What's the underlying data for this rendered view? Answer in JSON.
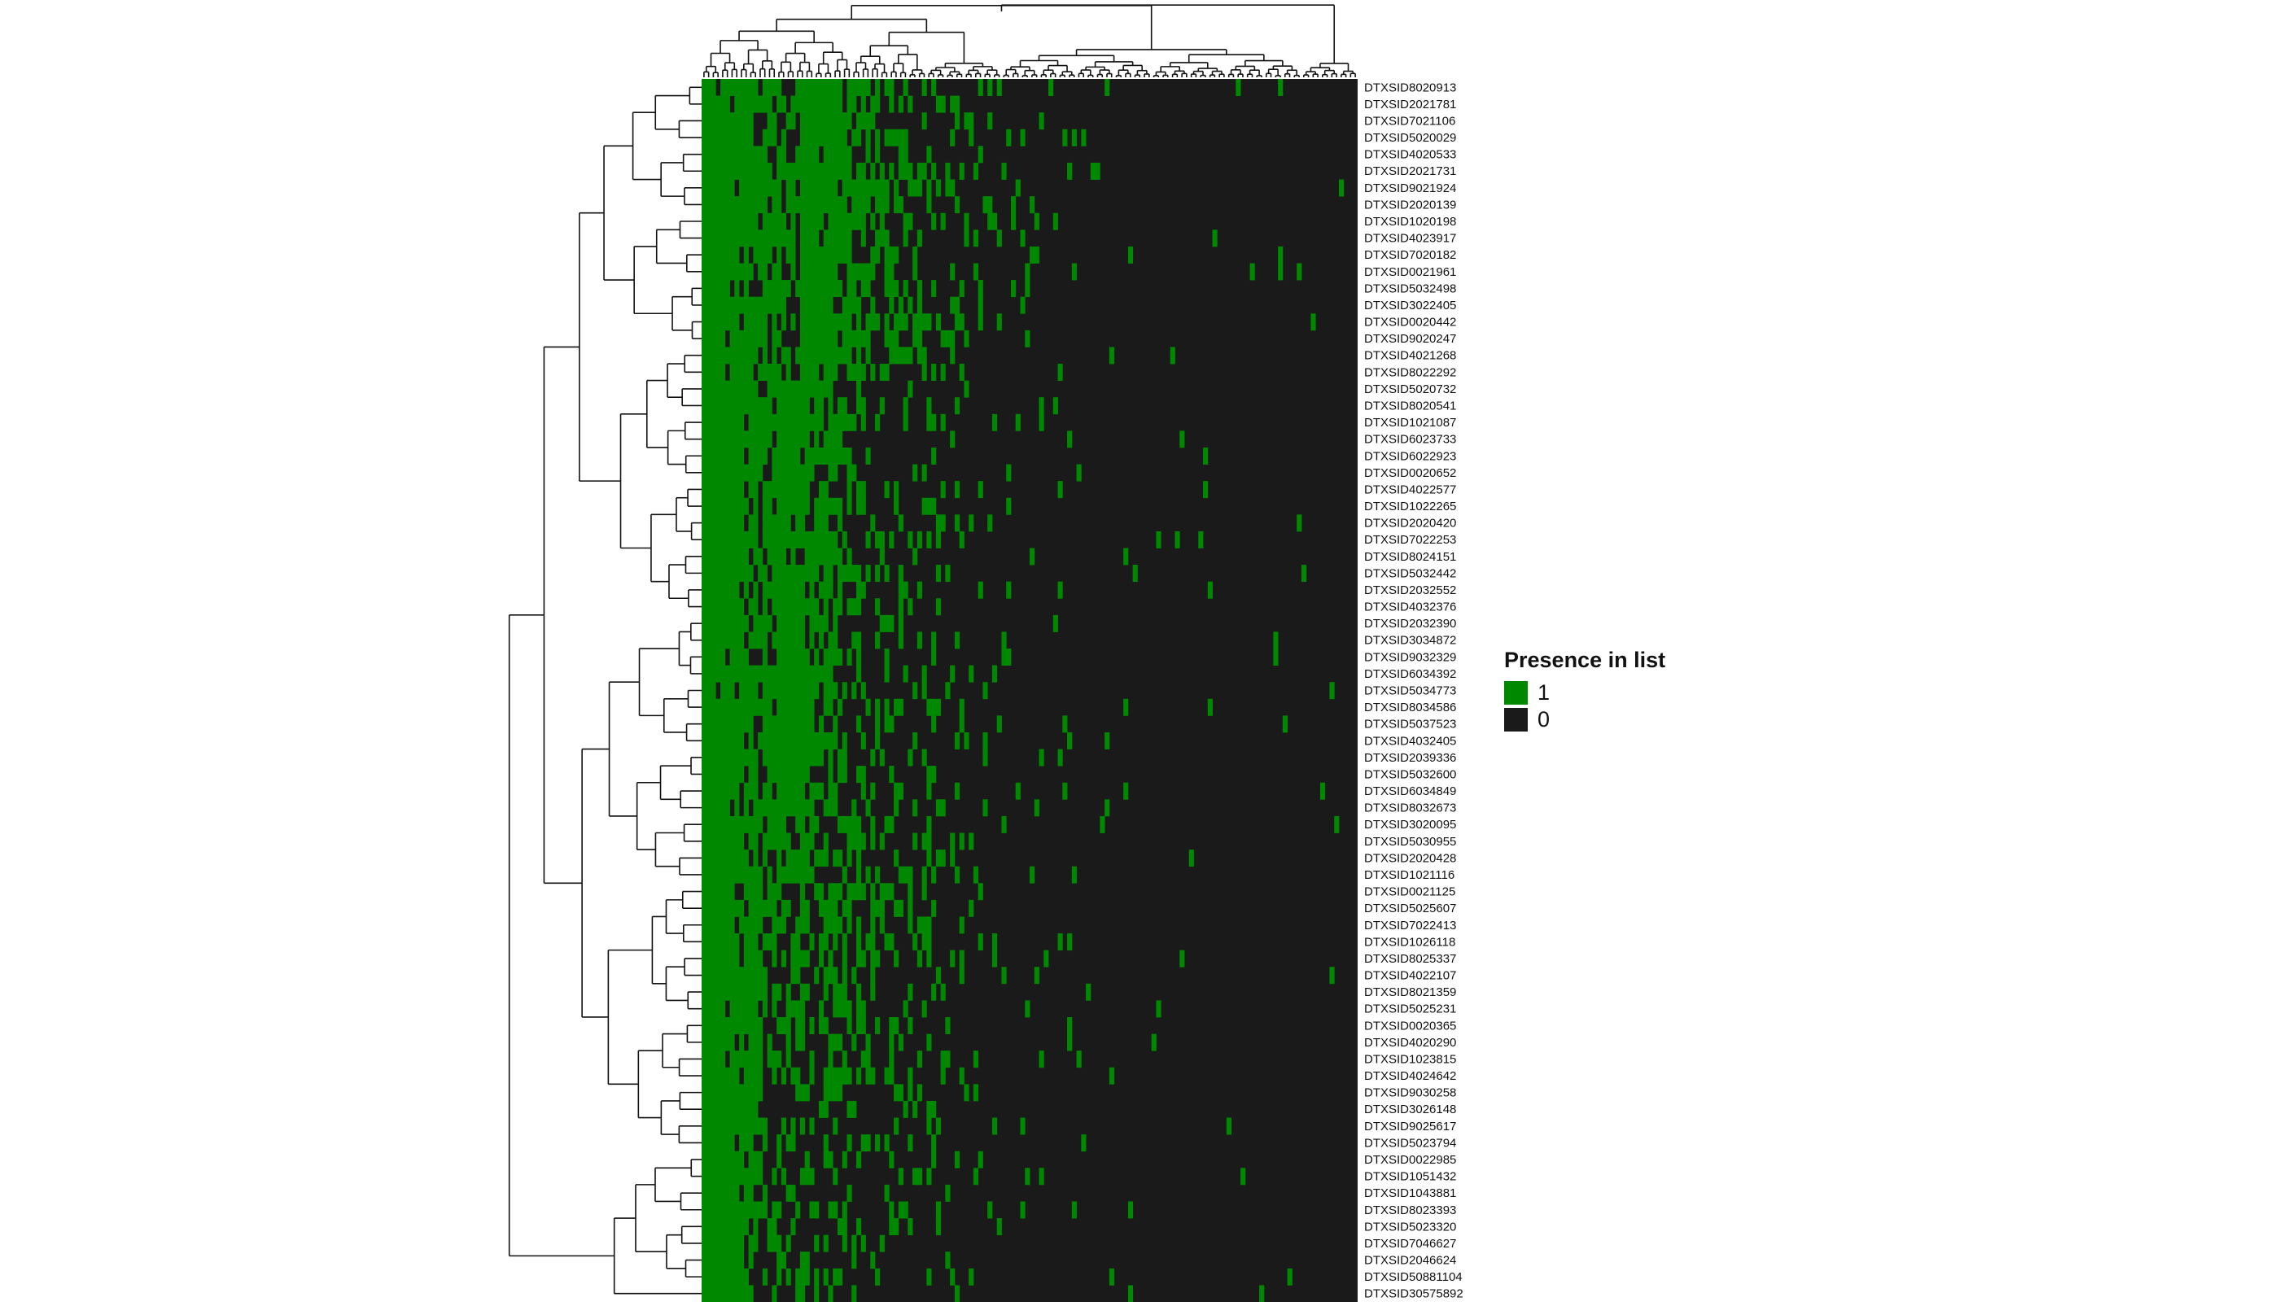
{
  "chart_data": {
    "type": "heatmap",
    "title": "",
    "xlabel": "",
    "ylabel": "",
    "legend": {
      "title": "Presence in list",
      "position": "right",
      "entries": [
        {
          "label": "1",
          "color": "#008800"
        },
        {
          "label": "0",
          "color": "#1a1a1a"
        }
      ]
    },
    "row_labels": [
      "DTXSID8020913",
      "DTXSID2021781",
      "DTXSID7021106",
      "DTXSID5020029",
      "DTXSID4020533",
      "DTXSID2021731",
      "DTXSID9021924",
      "DTXSID2020139",
      "DTXSID1020198",
      "DTXSID4023917",
      "DTXSID7020182",
      "DTXSID0021961",
      "DTXSID5032498",
      "DTXSID3022405",
      "DTXSID0020442",
      "DTXSID9020247",
      "DTXSID4021268",
      "DTXSID8022292",
      "DTXSID5020732",
      "DTXSID8020541",
      "DTXSID1021087",
      "DTXSID6023733",
      "DTXSID6022923",
      "DTXSID0020652",
      "DTXSID4022577",
      "DTXSID1022265",
      "DTXSID2020420",
      "DTXSID7022253",
      "DTXSID8024151",
      "DTXSID5032442",
      "DTXSID2032552",
      "DTXSID4032376",
      "DTXSID2032390",
      "DTXSID3034872",
      "DTXSID9032329",
      "DTXSID6034392",
      "DTXSID5034773",
      "DTXSID8034586",
      "DTXSID5037523",
      "DTXSID4032405",
      "DTXSID2039336",
      "DTXSID5032600",
      "DTXSID6034849",
      "DTXSID8032673",
      "DTXSID3020095",
      "DTXSID5030955",
      "DTXSID2020428",
      "DTXSID1021116",
      "DTXSID0021125",
      "DTXSID5025607",
      "DTXSID7022413",
      "DTXSID1026118",
      "DTXSID8025337",
      "DTXSID4022107",
      "DTXSID8021359",
      "DTXSID5025231",
      "DTXSID0020365",
      "DTXSID4020290",
      "DTXSID1023815",
      "DTXSID4024642",
      "DTXSID9030258",
      "DTXSID3026148",
      "DTXSID9025617",
      "DTXSID5023794",
      "DTXSID0022985",
      "DTXSID1051432",
      "DTXSID1043881",
      "DTXSID8023393",
      "DTXSID5023320",
      "DTXSID7046627",
      "DTXSID2046624",
      "DTXSID50881104",
      "DTXSID30575892"
    ],
    "column_count": 140,
    "column_labels_shown": false,
    "dendrograms": {
      "rows": true,
      "columns": true
    },
    "values_note_col_profile": [
      1.0,
      1.0,
      1.0,
      0.98,
      0.97,
      0.95,
      0.93,
      0.9,
      0.88,
      0.86,
      0.82,
      0.8,
      0.78,
      0.76,
      0.72,
      0.7,
      0.66,
      0.62,
      0.6,
      0.58,
      0.55,
      0.52,
      0.5,
      0.48,
      0.46,
      0.44,
      0.42,
      0.4,
      0.38,
      0.36,
      0.34,
      0.32,
      0.3,
      0.3,
      0.28,
      0.27,
      0.26,
      0.25,
      0.24,
      0.23,
      0.22,
      0.21,
      0.2,
      0.19,
      0.18,
      0.17,
      0.16,
      0.15,
      0.15,
      0.14,
      0.13,
      0.12,
      0.12,
      0.11,
      0.1,
      0.1,
      0.09,
      0.09,
      0.08,
      0.08,
      0.07,
      0.07,
      0.07,
      0.06,
      0.06,
      0.06,
      0.05,
      0.05,
      0.05,
      0.05,
      0.04,
      0.04,
      0.04,
      0.04,
      0.04,
      0.03,
      0.03,
      0.03,
      0.03,
      0.03,
      0.03,
      0.03,
      0.02,
      0.02,
      0.02,
      0.02,
      0.02,
      0.02,
      0.02,
      0.02,
      0.02,
      0.02,
      0.02,
      0.02,
      0.01,
      0.01,
      0.01,
      0.01,
      0.01,
      0.01,
      0.01,
      0.01,
      0.01,
      0.01,
      0.01,
      0.01,
      0.01,
      0.01,
      0.01,
      0.01,
      0.01,
      0.01,
      0.01,
      0.01,
      0.01,
      0.01,
      0.01,
      0.01,
      0.01,
      0.01,
      0.01,
      0.01,
      0.01,
      0.01,
      0.01,
      0.01,
      0.01,
      0.01,
      0.01,
      0.01,
      0.01,
      0.01,
      0.01,
      0.01,
      0.01,
      0.01,
      0.01,
      0.01,
      0.01,
      0.01
    ]
  }
}
